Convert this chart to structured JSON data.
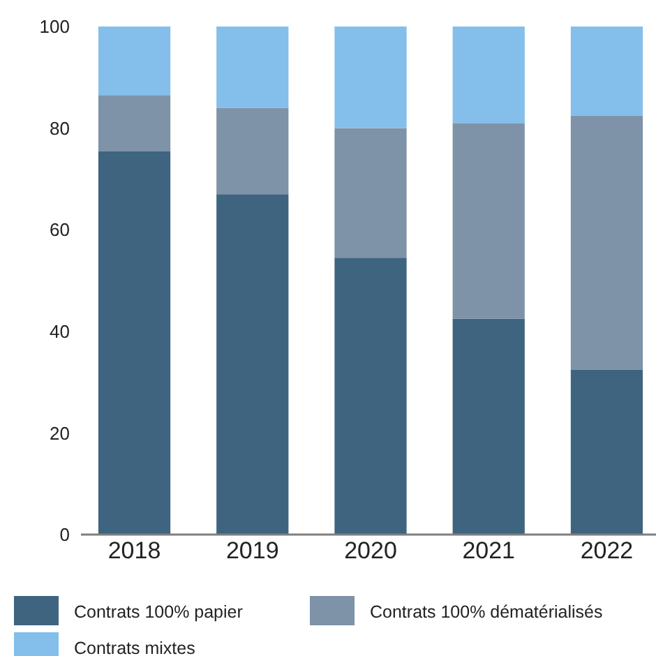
{
  "chart_data": {
    "type": "bar",
    "stacked": true,
    "categories": [
      "2018",
      "2019",
      "2020",
      "2021",
      "2022"
    ],
    "series": [
      {
        "name": "Contrats 100% papier",
        "color": "#3e6480",
        "values": [
          75.5,
          67,
          54.5,
          42.5,
          32.5
        ]
      },
      {
        "name": "Contrats 100% dématérialisés",
        "color": "#7e92a8",
        "values": [
          11,
          17,
          25.5,
          38.5,
          50
        ]
      },
      {
        "name": "Contrats mixtes",
        "color": "#83bfea",
        "values": [
          13.5,
          16,
          20,
          19,
          17.5
        ]
      }
    ],
    "ylim": [
      0,
      100
    ],
    "yticks": [
      0,
      20,
      40,
      60,
      80,
      100
    ],
    "grid": false,
    "legend": "bottom"
  }
}
